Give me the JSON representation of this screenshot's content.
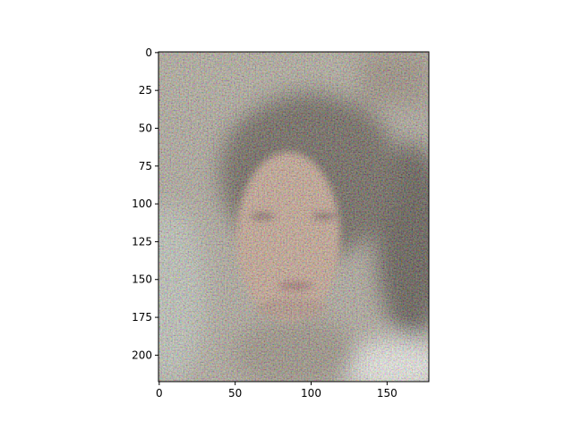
{
  "chart_data": {
    "type": "image",
    "xlim": [
      -0.5,
      177.5
    ],
    "ylim": [
      217.5,
      -0.5
    ],
    "xticks": [
      0,
      50,
      100,
      150
    ],
    "yticks": [
      0,
      25,
      50,
      75,
      100,
      125,
      150,
      175,
      200
    ]
  }
}
